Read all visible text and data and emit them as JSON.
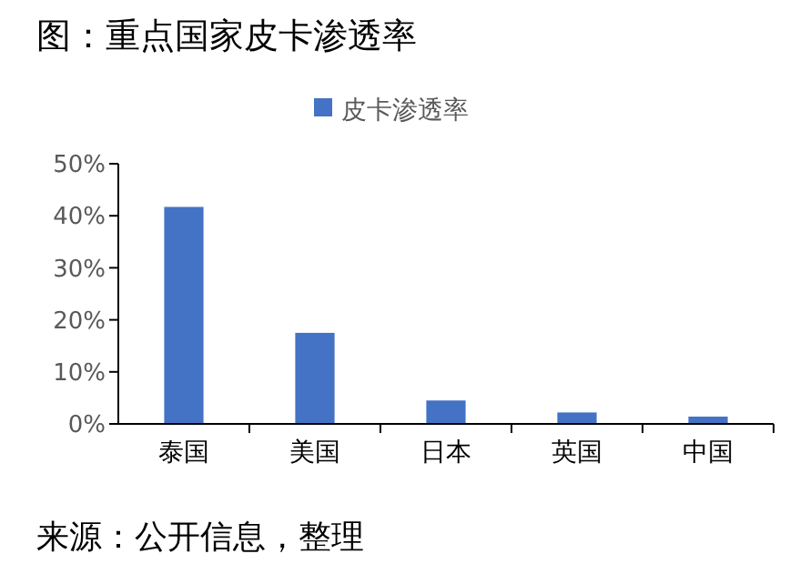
{
  "chart_data": {
    "type": "bar",
    "title": "图：重点国家皮卡渗透率",
    "categories": [
      "泰国",
      "美国",
      "日本",
      "英国",
      "中国"
    ],
    "series": [
      {
        "name": "皮卡渗透率",
        "color": "#4472c4",
        "values": [
          41.7,
          17.5,
          4.5,
          2.2,
          1.4
        ]
      }
    ],
    "ylim": [
      0,
      50
    ],
    "yticks": [
      {
        "value": 0,
        "label": "0%"
      },
      {
        "value": 10,
        "label": "10%"
      },
      {
        "value": 20,
        "label": "20%"
      },
      {
        "value": 30,
        "label": "30%"
      },
      {
        "value": 40,
        "label": "40%"
      },
      {
        "value": 50,
        "label": "50%"
      }
    ],
    "legend": "top",
    "grid": false,
    "annotations": [
      "来源：公开信息，整理"
    ]
  }
}
